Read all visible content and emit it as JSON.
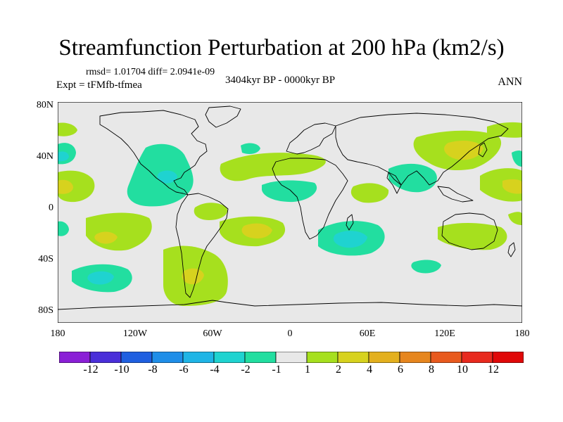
{
  "title": "Streamfunction Perturbation at 200 hPa (km2/s)",
  "stats": "rmsd= 1.01704 diff= 2.0941e-09",
  "experiment": "Expt = tFMfb-tfmea",
  "period": "3404kyr BP - 0000kyr BP",
  "season": "ANN",
  "lat_labels": [
    "80N",
    "40N",
    "0",
    "40S",
    "80S"
  ],
  "lon_labels": [
    "180",
    "120W",
    "60W",
    "0",
    "60E",
    "120E",
    "180"
  ],
  "colorbar": {
    "labels": [
      "-12",
      "-10",
      "-8",
      "-6",
      "-4",
      "-2",
      "-1",
      "1",
      "2",
      "4",
      "6",
      "8",
      "10",
      "12"
    ],
    "colors": [
      "#8a1fd6",
      "#4a2fd9",
      "#1f5fe0",
      "#1f8ee8",
      "#1fb5e6",
      "#1fd3d0",
      "#22dea0",
      "#e8e8e8",
      "#a6e01e",
      "#d7d21e",
      "#e3b01e",
      "#e6861e",
      "#e85a1e",
      "#e82a1e",
      "#e00808"
    ]
  },
  "field_colors": {
    "neutral": "#e8e8e8",
    "neg1": "#22dea0",
    "neg2": "#1fd3d0",
    "pos1": "#a6e01e",
    "pos2": "#d7d21e"
  }
}
